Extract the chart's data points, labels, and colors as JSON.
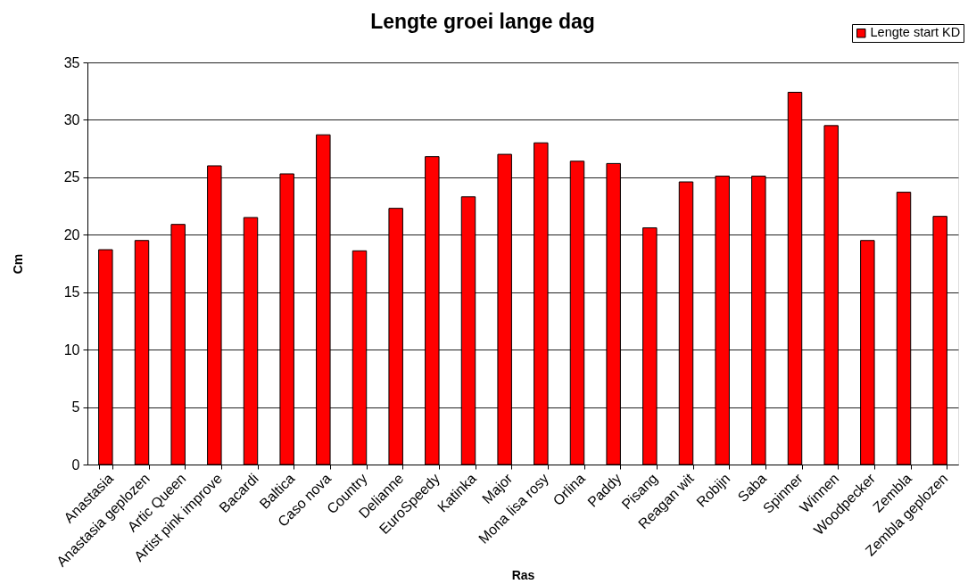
{
  "chart_data": {
    "type": "bar",
    "title": "Lengte groei lange dag",
    "xlabel": "Ras",
    "ylabel": "Cm",
    "categories": [
      "Anastasia",
      "Anastasia geplozen",
      "Artic Queen",
      "Artist pink improve",
      "Bacardi",
      "Baltica",
      "Caso nova",
      "Country",
      "Delianne",
      "EuroSpeedy",
      "Katinka",
      "Major",
      "Mona lisa rosy",
      "Orlina",
      "Paddy",
      "Pisang",
      "Reagan wit",
      "Robijn",
      "Saba",
      "Spinner",
      "Winnen",
      "Woodpecker",
      "Zembla",
      "Zembla geplozen"
    ],
    "series": [
      {
        "name": "Lengte start KD",
        "color": "#ff0000",
        "values": [
          18.7,
          19.5,
          20.9,
          26.0,
          21.5,
          25.3,
          28.7,
          18.6,
          22.3,
          26.8,
          23.3,
          27.0,
          28.0,
          26.4,
          26.2,
          20.6,
          24.6,
          25.1,
          25.1,
          32.4,
          29.5,
          19.5,
          23.7,
          21.6
        ]
      }
    ],
    "ylim": [
      0,
      35
    ],
    "yticks": [
      0,
      5,
      10,
      15,
      20,
      25,
      30,
      35
    ],
    "grid": "y",
    "legend": "top right"
  }
}
